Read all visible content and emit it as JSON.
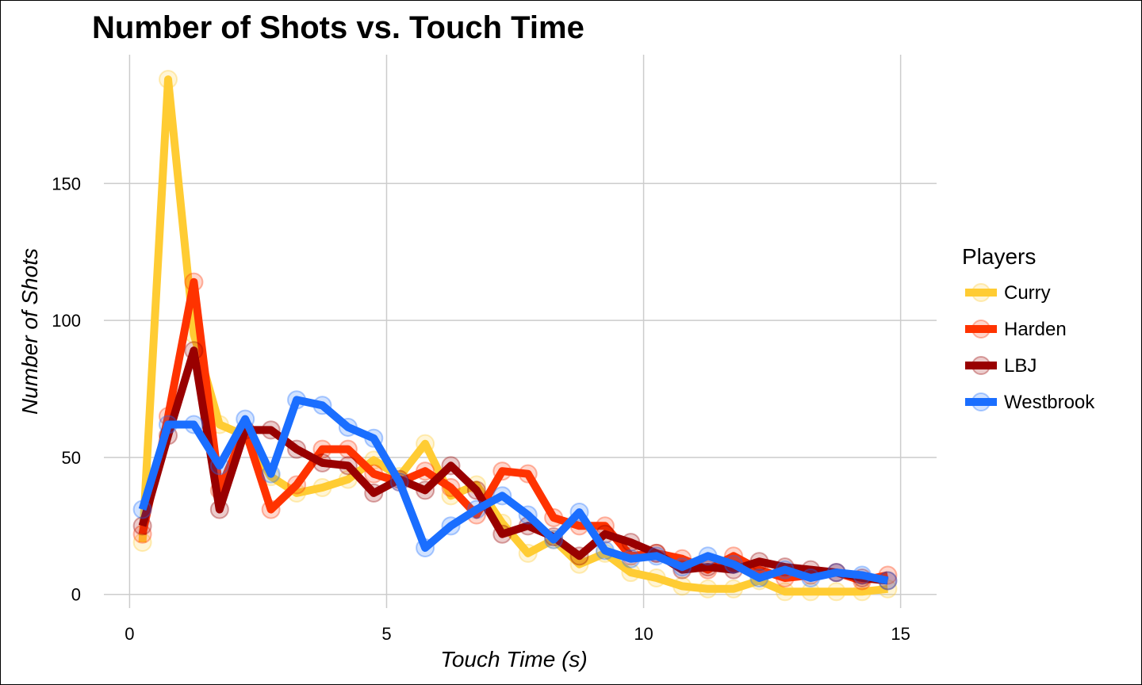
{
  "chart_data": {
    "type": "line",
    "title": "Number of Shots vs. Touch Time",
    "xlabel": "Touch Time (s)",
    "ylabel": "Number of Shots",
    "xlim": [
      -0.5,
      15.7
    ],
    "ylim": [
      -5,
      197
    ],
    "xticks": [
      0,
      5,
      10,
      15
    ],
    "yticks": [
      0,
      50,
      100,
      150
    ],
    "grid": true,
    "legend": {
      "title": "Players",
      "position": "right"
    },
    "x": [
      0.25,
      0.75,
      1.25,
      1.75,
      2.25,
      2.75,
      3.25,
      3.75,
      4.25,
      4.75,
      5.25,
      5.75,
      6.25,
      6.75,
      7.25,
      7.75,
      8.25,
      8.75,
      9.25,
      9.75,
      10.25,
      10.75,
      11.25,
      11.75,
      12.25,
      12.75,
      13.25,
      13.75,
      14.25,
      14.75
    ],
    "series": [
      {
        "name": "Curry",
        "color": "#FFCC33",
        "values": [
          19,
          188,
          95,
          62,
          58,
          43,
          37,
          39,
          42,
          49,
          43,
          55,
          36,
          40,
          26,
          15,
          20,
          11,
          15,
          8,
          6,
          3,
          2,
          2,
          5,
          1,
          1,
          1,
          1,
          2
        ]
      },
      {
        "name": "Harden",
        "color": "#FF3300",
        "values": [
          22,
          65,
          114,
          38,
          60,
          31,
          40,
          53,
          53,
          44,
          41,
          45,
          39,
          29,
          45,
          44,
          28,
          25,
          25,
          14,
          15,
          13,
          9,
          14,
          9,
          6,
          7,
          8,
          5,
          7
        ]
      },
      {
        "name": "LBJ",
        "color": "#990000",
        "values": [
          25,
          58,
          89,
          31,
          60,
          60,
          53,
          48,
          47,
          37,
          42,
          38,
          47,
          38,
          22,
          25,
          21,
          14,
          22,
          19,
          15,
          9,
          10,
          9,
          12,
          10,
          9,
          8,
          6,
          5
        ]
      },
      {
        "name": "Westbrook",
        "color": "#1A6EFF",
        "values": [
          31,
          62,
          62,
          47,
          64,
          44,
          71,
          69,
          61,
          57,
          41,
          17,
          25,
          31,
          36,
          29,
          20,
          30,
          16,
          13,
          14,
          10,
          14,
          11,
          6,
          9,
          6,
          8,
          7,
          5
        ]
      }
    ]
  }
}
